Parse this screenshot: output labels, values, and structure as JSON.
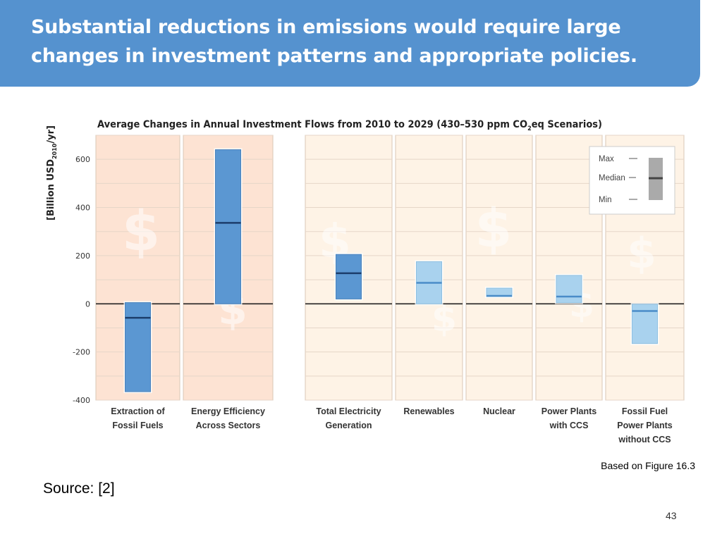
{
  "slide": {
    "title_line1": "Substantial reductions in emissions would require large",
    "title_line2": "changes in investment patterns and appropriate policies.",
    "note": "Based on Figure 16.3",
    "source": "Source:  [2]",
    "page_number": "43"
  },
  "chart_data": {
    "type": "range-bar",
    "title": "Average Changes in Annual Investment Flows from 2010 to 2029 (430–530 ppm CO",
    "title_sub": "2",
    "title_suffix": "eq Scenarios)",
    "ylabel_pre": "[Billion USD",
    "ylabel_sub": "2010",
    "ylabel_post": "/yr]",
    "ylim": [
      -400,
      700
    ],
    "yticks": [
      -400,
      -200,
      0,
      200,
      400,
      600
    ],
    "categories": [
      {
        "lines": [
          "Extraction of",
          "Fossil Fuels"
        ],
        "min": -365,
        "max": 5,
        "median": -58,
        "group": "A",
        "shade": "dark"
      },
      {
        "lines": [
          "Energy Efficiency",
          "Across Sectors"
        ],
        "min": 0,
        "max": 640,
        "median": 336,
        "group": "A",
        "shade": "dark"
      },
      {
        "lines": [
          "Total Electricity",
          "Generation"
        ],
        "min": 20,
        "max": 205,
        "median": 127,
        "group": "B",
        "shade": "dark"
      },
      {
        "lines": [
          "Renewables"
        ],
        "min": 0,
        "max": 175,
        "median": 87,
        "group": "B",
        "shade": "light"
      },
      {
        "lines": [
          "Nuclear"
        ],
        "min": 30,
        "max": 65,
        "median": 33,
        "group": "B",
        "shade": "light"
      },
      {
        "lines": [
          "Power Plants",
          "with CCS"
        ],
        "min": 5,
        "max": 118,
        "median": 30,
        "group": "B",
        "shade": "light"
      },
      {
        "lines": [
          "Fossil Fuel",
          "Power Plants",
          "without CCS"
        ],
        "min": -165,
        "max": -2,
        "median": -30,
        "group": "B",
        "shade": "light"
      }
    ],
    "legend": {
      "max_label": "Max",
      "median_label": "Median",
      "min_label": "Min",
      "position": "top-right"
    },
    "colors": {
      "dark_bar": "#5b97d2",
      "light_bar": "#a9d2ee",
      "dark_median": "#1c3d6b",
      "light_median": "#4a8cc8",
      "panel_a_bg": "#fde3d3",
      "panel_b_bg": "#fef3e6",
      "grid": "#e6d6c8"
    }
  }
}
